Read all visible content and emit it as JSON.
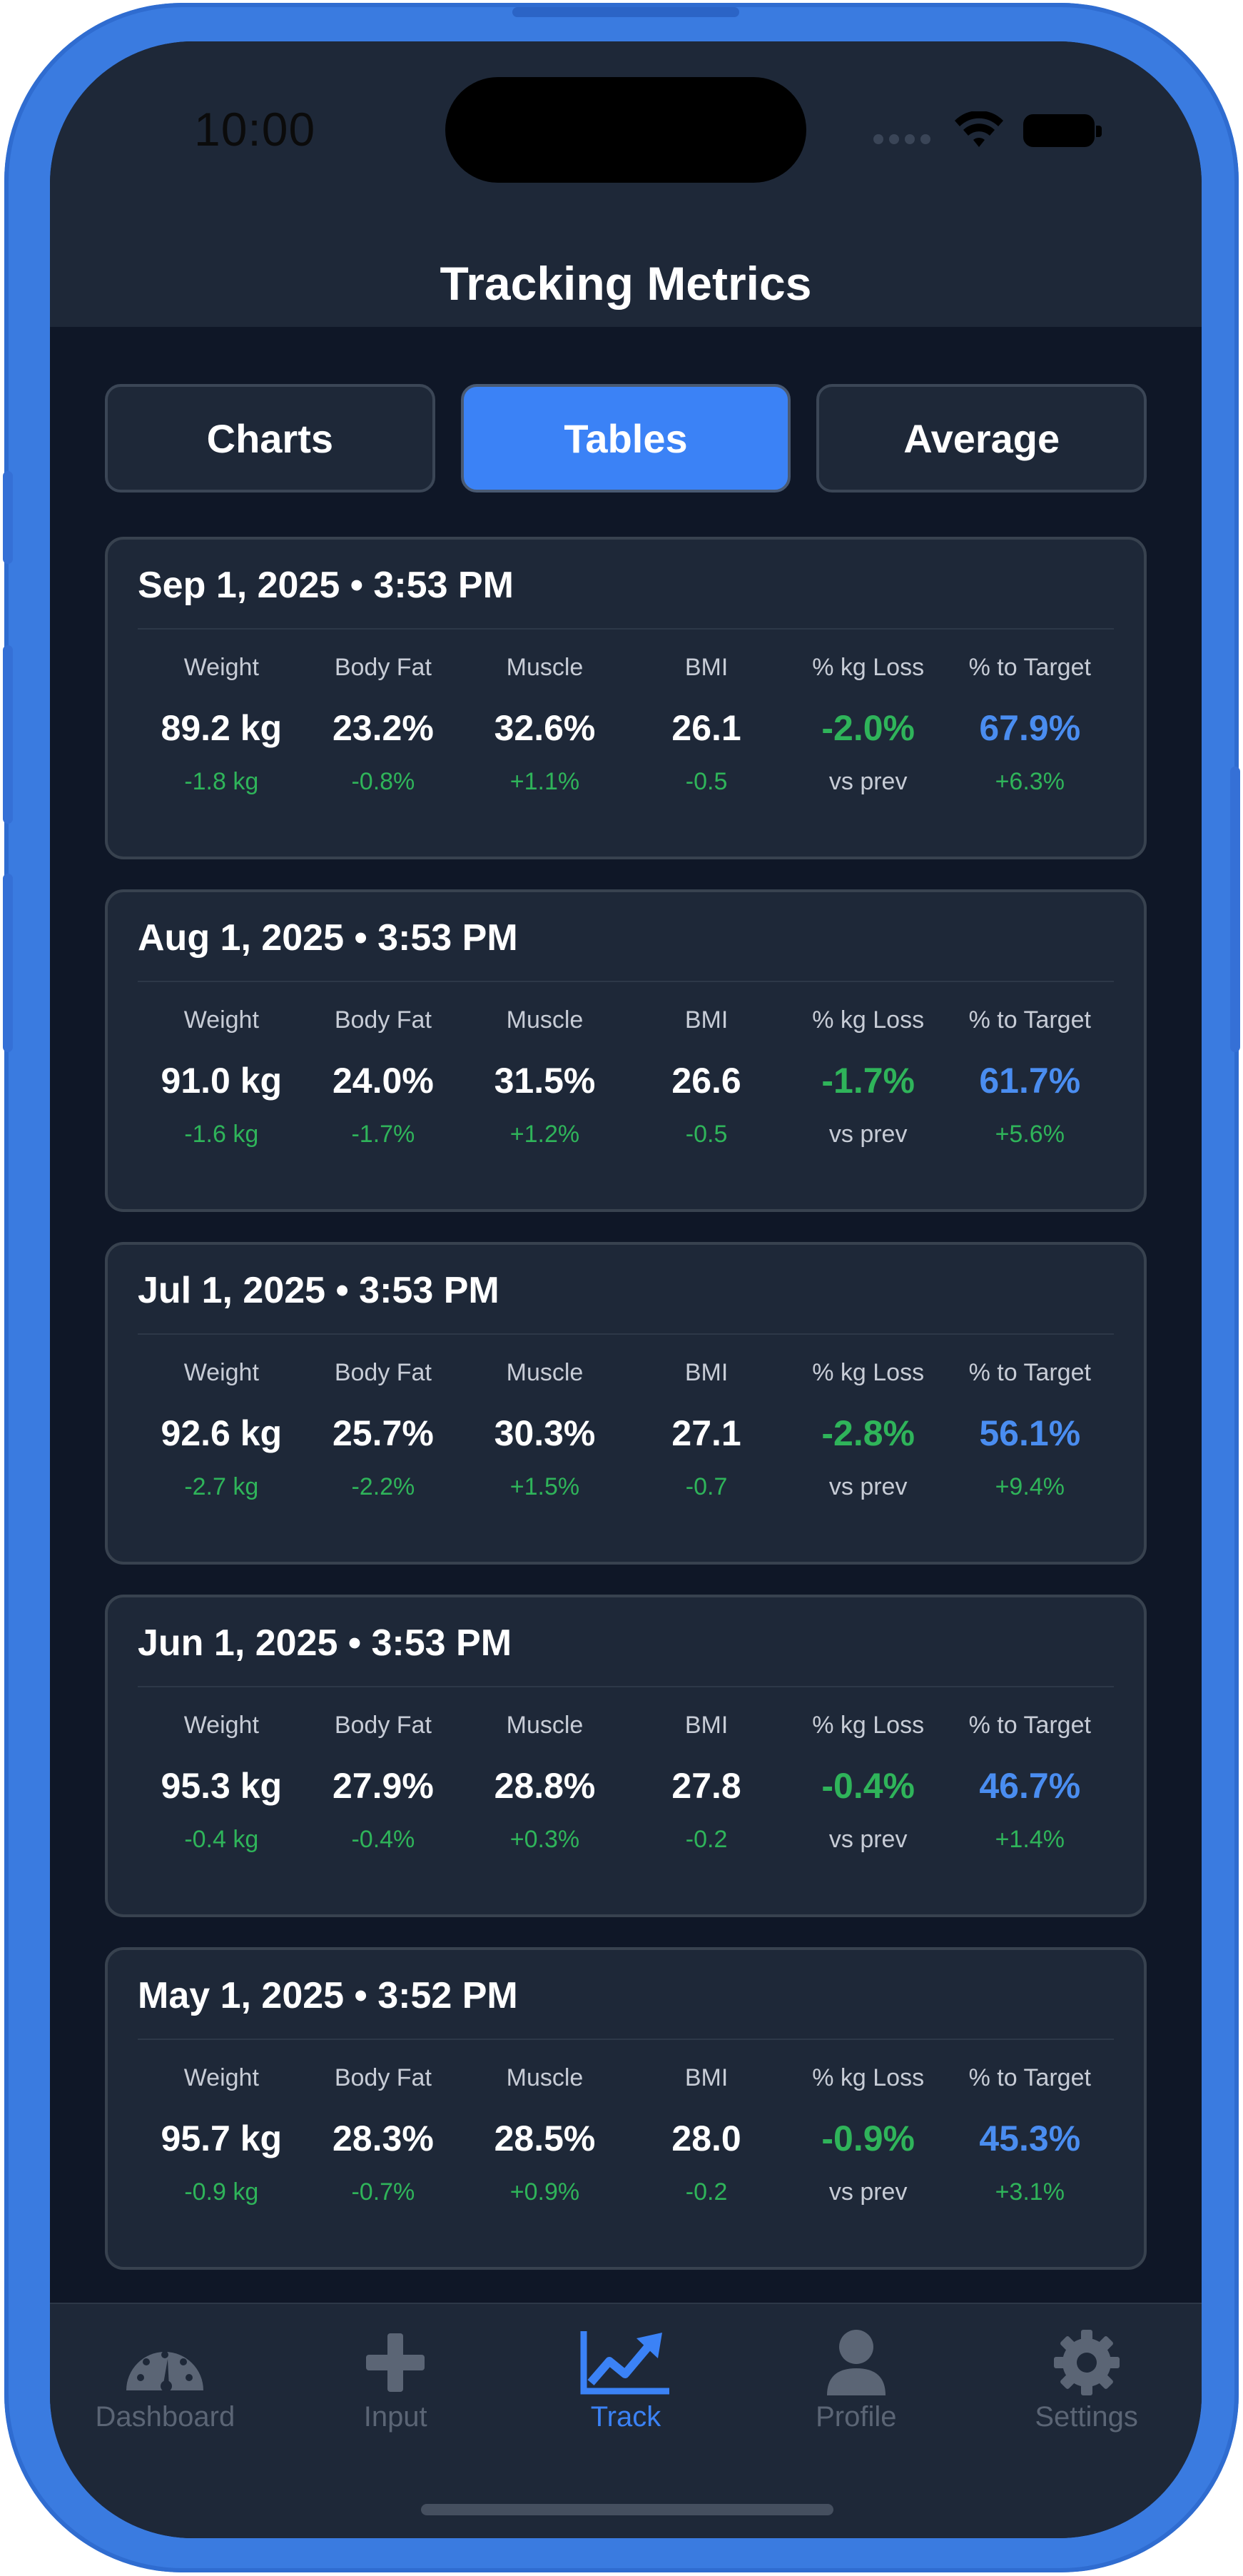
{
  "status_bar": {
    "time": "10:00"
  },
  "header": {
    "title": "Tracking Metrics"
  },
  "view_tabs": [
    {
      "label": "Charts",
      "active": false
    },
    {
      "label": "Tables",
      "active": true
    },
    {
      "label": "Average",
      "active": false
    }
  ],
  "columns": [
    "Weight",
    "Body Fat",
    "Muscle",
    "BMI",
    "% kg Loss",
    "% to Target"
  ],
  "entries": [
    {
      "date": "Sep 1, 2025 • 3:53 PM",
      "values": [
        "89.2 kg",
        "23.2%",
        "32.6%",
        "26.1",
        "-2.0%",
        "67.9%"
      ],
      "deltas": [
        "-1.8 kg",
        "-0.8%",
        "+1.1%",
        "-0.5",
        "vs prev",
        "+6.3%"
      ]
    },
    {
      "date": "Aug 1, 2025 • 3:53 PM",
      "values": [
        "91.0 kg",
        "24.0%",
        "31.5%",
        "26.6",
        "-1.7%",
        "61.7%"
      ],
      "deltas": [
        "-1.6 kg",
        "-1.7%",
        "+1.2%",
        "-0.5",
        "vs prev",
        "+5.6%"
      ]
    },
    {
      "date": "Jul 1, 2025 • 3:53 PM",
      "values": [
        "92.6 kg",
        "25.7%",
        "30.3%",
        "27.1",
        "-2.8%",
        "56.1%"
      ],
      "deltas": [
        "-2.7 kg",
        "-2.2%",
        "+1.5%",
        "-0.7",
        "vs prev",
        "+9.4%"
      ]
    },
    {
      "date": "Jun 1, 2025 • 3:53 PM",
      "values": [
        "95.3 kg",
        "27.9%",
        "28.8%",
        "27.8",
        "-0.4%",
        "46.7%"
      ],
      "deltas": [
        "-0.4 kg",
        "-0.4%",
        "+0.3%",
        "-0.2",
        "vs prev",
        "+1.4%"
      ]
    },
    {
      "date": "May 1, 2025 • 3:52 PM",
      "values": [
        "95.7 kg",
        "28.3%",
        "28.5%",
        "28.0",
        "-0.9%",
        "45.3%"
      ],
      "deltas": [
        "-0.9 kg",
        "-0.7%",
        "+0.9%",
        "-0.2",
        "vs prev",
        "+3.1%"
      ]
    }
  ],
  "tab_bar": [
    {
      "label": "Dashboard",
      "icon": "dashboard-gauge-icon",
      "active": false
    },
    {
      "label": "Input",
      "icon": "plus-icon",
      "active": false
    },
    {
      "label": "Track",
      "icon": "trend-chart-icon",
      "active": true
    },
    {
      "label": "Profile",
      "icon": "person-icon",
      "active": false
    },
    {
      "label": "Settings",
      "icon": "gear-icon",
      "active": false
    }
  ],
  "colors": {
    "accent": "#3b82f6",
    "positive": "#2fb45a",
    "target": "#4a8df0",
    "background": "#0f1727",
    "card": "#1e2838",
    "frame": "#3a7be0"
  }
}
